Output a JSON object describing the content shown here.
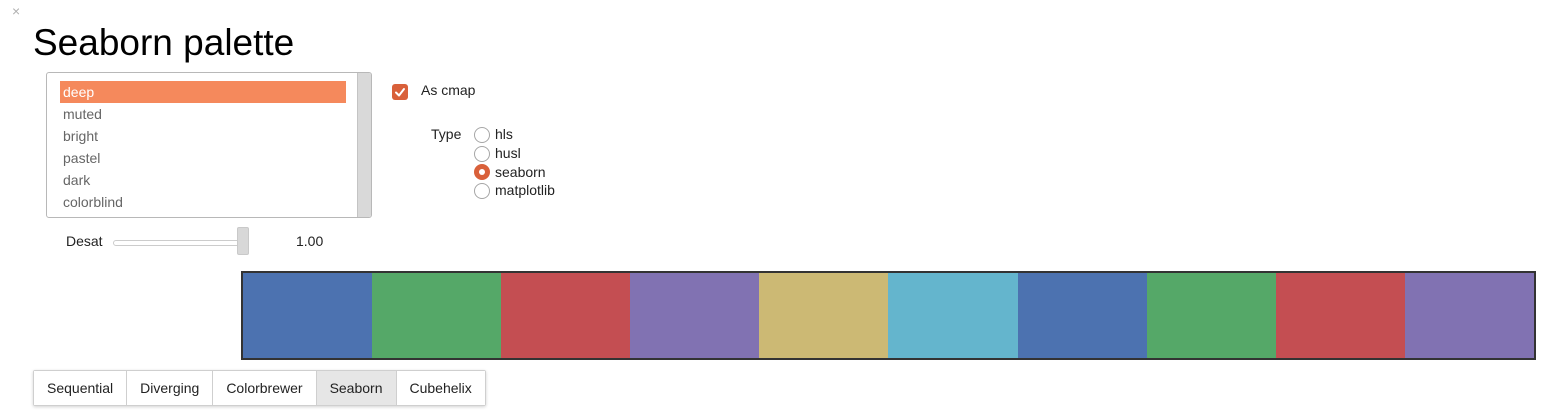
{
  "window": {
    "close_glyph": "×"
  },
  "title": "Seaborn palette",
  "palette_list": {
    "items": [
      "deep",
      "muted",
      "bright",
      "pastel",
      "dark",
      "colorblind"
    ],
    "selected": "deep"
  },
  "desat": {
    "label": "Desat",
    "value_text": "1.00",
    "value": 1.0
  },
  "as_cmap": {
    "label": "As cmap",
    "checked": true
  },
  "type": {
    "label": "Type",
    "options": [
      "hls",
      "husl",
      "seaborn",
      "matplotlib"
    ],
    "selected": "seaborn"
  },
  "swatches": [
    "#4c72b0",
    "#55a868",
    "#c44e52",
    "#8172b2",
    "#ccb974",
    "#64b5cd",
    "#4c72b0",
    "#55a868",
    "#c44e52",
    "#8172b2"
  ],
  "tabs": {
    "items": [
      "Sequential",
      "Diverging",
      "Colorbrewer",
      "Seaborn",
      "Cubehelix"
    ],
    "active": "Seaborn"
  },
  "colors": {
    "accent": "#d9603a",
    "selection": "#f5895c"
  }
}
